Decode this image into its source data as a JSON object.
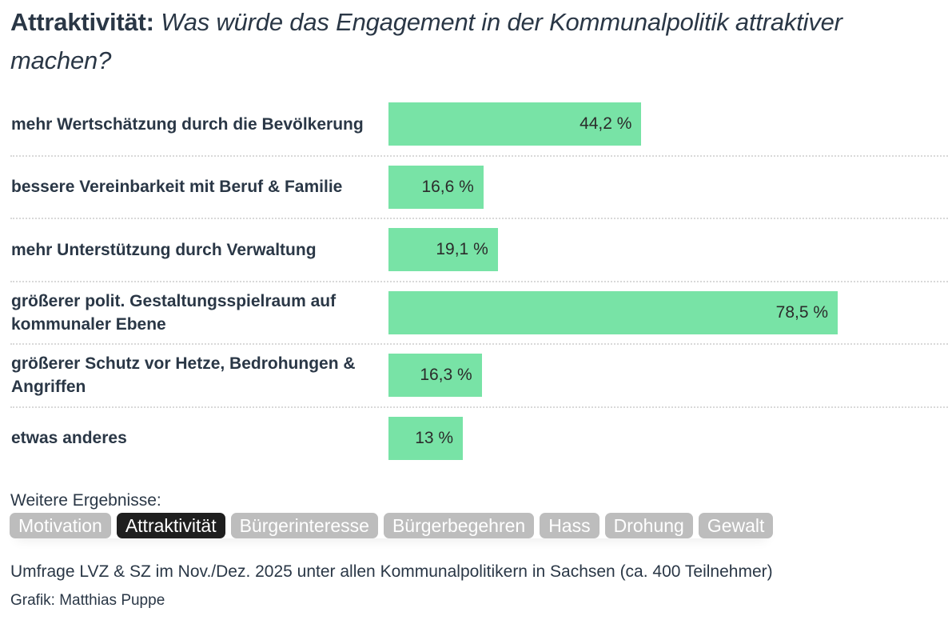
{
  "header": {
    "title_bold": "Attraktivität:",
    "title_italic": "Was würde das Engagement in der Kommunalpolitik attraktiver machen?"
  },
  "colors": {
    "bar": "#78e3a6",
    "text": "#2a3746",
    "pill": "#bdbdbd",
    "pill_active": "#1f1f1f"
  },
  "chart_data": {
    "type": "bar",
    "orientation": "horizontal",
    "title": "Attraktivität: Was würde das Engagement in der Kommunalpolitik attraktiver machen?",
    "xlabel": "",
    "ylabel": "",
    "xlim": [
      0,
      100
    ],
    "unit": "%",
    "grid": false,
    "categories": [
      "mehr Wertschätzung durch die Bevölkerung",
      "bessere Vereinbarkeit mit Beruf & Familie",
      "mehr Unterstützung durch Verwaltung",
      "größerer polit. Gestaltungsspielraum auf kommunaler Ebene",
      "größerer Schutz vor Hetze, Bedrohungen & Angriffen",
      "etwas anderes"
    ],
    "values": [
      44.2,
      16.6,
      19.1,
      78.5,
      16.3,
      13
    ],
    "data_labels": [
      "44,2 %",
      "16,6 %",
      "19,1 %",
      "78,5 %",
      "16,3 %",
      "13 %"
    ]
  },
  "more": {
    "label": "Weitere Ergebnisse:",
    "tabs": [
      {
        "label": "Motivation",
        "active": false
      },
      {
        "label": "Attraktivität",
        "active": true
      },
      {
        "label": "Bürgerinteresse",
        "active": false
      },
      {
        "label": "Bürgerbegehren",
        "active": false
      },
      {
        "label": "Hass",
        "active": false
      },
      {
        "label": "Drohung",
        "active": false
      },
      {
        "label": "Gewalt",
        "active": false
      }
    ]
  },
  "footer": {
    "source": "Umfrage LVZ & SZ im Nov./Dez. 2025 unter allen Kommunalpolitikern in Sachsen (ca. 400 Teilnehmer)",
    "credit": "Grafik: Matthias Puppe"
  }
}
